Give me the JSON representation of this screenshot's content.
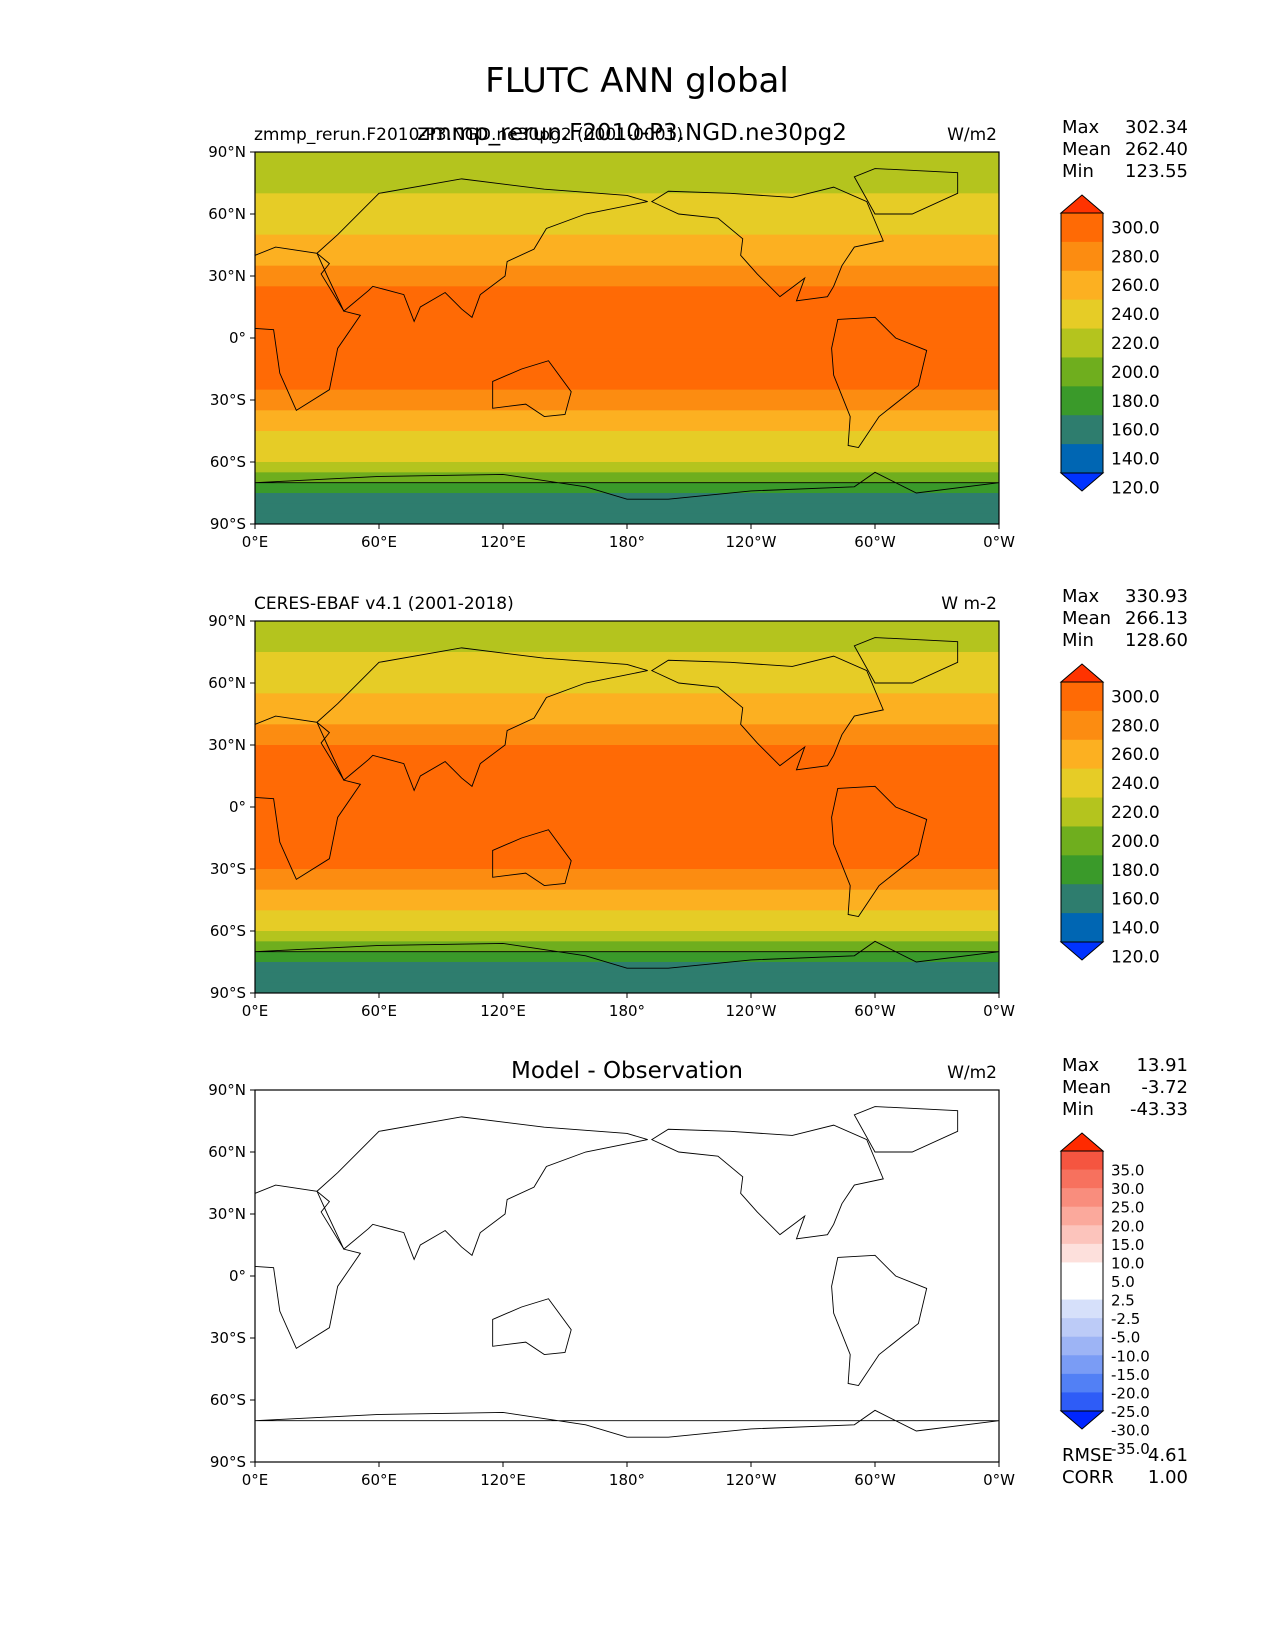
{
  "figure_title": "FLUTC ANN global",
  "lon_ticks": [
    "0°E",
    "60°E",
    "120°E",
    "180°",
    "120°W",
    "60°W",
    "0°W"
  ],
  "lat_ticks": [
    "90°N",
    "60°N",
    "30°N",
    "0°",
    "30°S",
    "60°S",
    "90°S"
  ],
  "colors": {
    "abs_levels": [
      "#0033ff",
      "#0066b3",
      "#2e7d6e",
      "#3a9a2a",
      "#6fae1e",
      "#b4c41e",
      "#e6cc26",
      "#fcb021",
      "#fc8c11",
      "#ff6a05",
      "#ff3300"
    ],
    "diff_levels": [
      "#0026ff",
      "#2e5cf7",
      "#5280f5",
      "#7a9cf5",
      "#9db4f5",
      "#bccbf7",
      "#d6e0fa",
      "#ffffff",
      "#ffffff",
      "#fde0dc",
      "#fcc4bc",
      "#fba99c",
      "#f98d7d",
      "#f7715e",
      "#f55540",
      "#ff2a00"
    ]
  },
  "panels": {
    "model": {
      "title_left": "zmmp_rerun.F2010-P3.NGD.ne30pg2 (0001-0001)",
      "title_center": "zmmp_rerun.F2010-P3.NGD.ne30pg2",
      "units": "W/m2",
      "stats": [
        {
          "label": "Max",
          "value": "302.34"
        },
        {
          "label": "Mean",
          "value": "262.40"
        },
        {
          "label": "Min",
          "value": "123.55"
        }
      ]
    },
    "obs": {
      "title_left": "CERES-EBAF v4.1 (2001-2018)",
      "units": "W m-2",
      "stats": [
        {
          "label": "Max",
          "value": "330.93"
        },
        {
          "label": "Mean",
          "value": "266.13"
        },
        {
          "label": "Min",
          "value": "128.60"
        }
      ]
    },
    "diff": {
      "title_center": "Model - Observation",
      "units": "W/m2",
      "stats": [
        {
          "label": "Max",
          "value": "13.91"
        },
        {
          "label": "Mean",
          "value": "-3.72"
        },
        {
          "label": "Min",
          "value": "-43.33"
        }
      ],
      "metrics": [
        {
          "label": "RMSE",
          "value": "4.61"
        },
        {
          "label": "CORR",
          "value": "1.00"
        }
      ]
    }
  },
  "chart_data": [
    {
      "type": "heatmap",
      "title": "zmmp_rerun.F2010-P3.NGD.ne30pg2",
      "units": "W/m2",
      "x": {
        "range": [
          0,
          360
        ]
      },
      "y": {
        "range": [
          -90,
          90
        ]
      },
      "colorbar": {
        "levels": [
          "120.0",
          "140.0",
          "160.0",
          "180.0",
          "200.0",
          "220.0",
          "240.0",
          "260.0",
          "280.0",
          "300.0"
        ],
        "extend": "both"
      },
      "zonal_profile": {
        "lat": [
          90,
          80,
          70,
          60,
          50,
          40,
          30,
          20,
          10,
          0,
          -10,
          -20,
          -30,
          -40,
          -50,
          -60,
          -70,
          -80,
          -90
        ],
        "value": [
          205,
          210,
          222,
          232,
          238,
          250,
          275,
          285,
          284,
          283,
          284,
          285,
          275,
          250,
          232,
          218,
          178,
          148,
          140
        ]
      }
    },
    {
      "type": "heatmap",
      "title": "CERES-EBAF v4.1 (2001-2018)",
      "units": "W m-2",
      "x": {
        "range": [
          0,
          360
        ]
      },
      "y": {
        "range": [
          -90,
          90
        ]
      },
      "colorbar": {
        "levels": [
          "120.0",
          "140.0",
          "160.0",
          "180.0",
          "200.0",
          "220.0",
          "240.0",
          "260.0",
          "280.0",
          "300.0"
        ],
        "extend": "both"
      },
      "zonal_profile": {
        "lat": [
          90,
          80,
          70,
          60,
          50,
          40,
          30,
          20,
          10,
          0,
          -10,
          -20,
          -30,
          -40,
          -50,
          -60,
          -70,
          -80,
          -90
        ],
        "value": [
          210,
          215,
          225,
          236,
          243,
          255,
          280,
          290,
          288,
          286,
          287,
          290,
          280,
          255,
          236,
          222,
          182,
          150,
          145
        ]
      }
    },
    {
      "type": "heatmap",
      "title": "Model - Observation",
      "units": "W/m2",
      "x": {
        "range": [
          0,
          360
        ]
      },
      "y": {
        "range": [
          -90,
          90
        ]
      },
      "colorbar": {
        "levels": [
          "-35.0",
          "-30.0",
          "-25.0",
          "-20.0",
          "-15.0",
          "-10.0",
          "-5.0",
          "-2.5",
          "2.5",
          "5.0",
          "10.0",
          "15.0",
          "20.0",
          "25.0",
          "30.0",
          "35.0"
        ],
        "extend": "both"
      },
      "zonal_profile": {
        "lat": [
          90,
          80,
          70,
          60,
          50,
          40,
          30,
          20,
          10,
          0,
          -10,
          -20,
          -30,
          -40,
          -50,
          -60,
          -70,
          -80,
          -90
        ],
        "value": [
          -4,
          -4,
          -3,
          -3,
          -5,
          -5,
          -5,
          -4,
          -2,
          -2,
          -5,
          -5,
          -5,
          -5,
          -4,
          -2,
          -4,
          -2,
          -4
        ]
      }
    }
  ]
}
